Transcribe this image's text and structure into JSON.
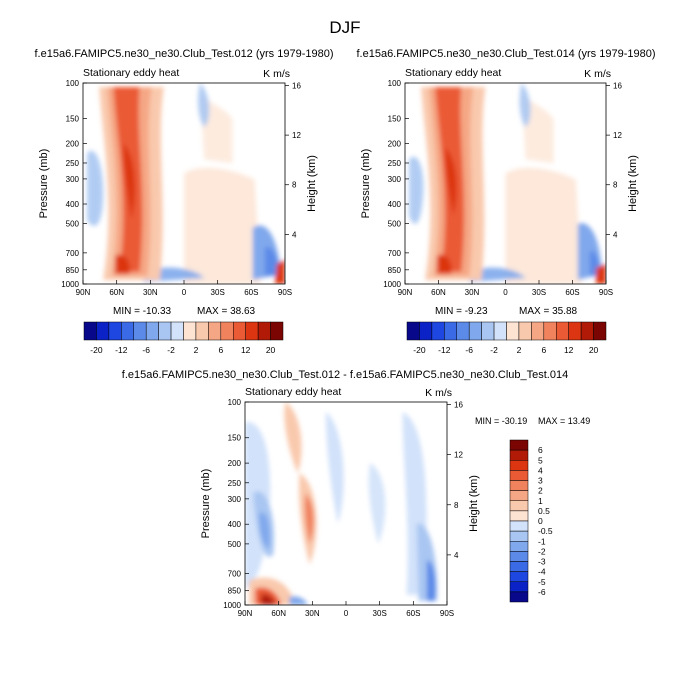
{
  "page": {
    "title": "DJF"
  },
  "chart_data": [
    {
      "type": "heatmap",
      "case_title": "f.e15a6.FAMIPC5.ne30_ne30.Club_Test.012 (yrs 1979-1980)",
      "field_label": "Stationary eddy heat",
      "units": "K m/s",
      "xlabel": "",
      "ylabel": "Pressure (mb)",
      "y2label": "Height (km)",
      "x_ticks": [
        "90N",
        "60N",
        "30N",
        "0",
        "30S",
        "60S",
        "90S"
      ],
      "y_ticks": [
        100,
        150,
        200,
        250,
        300,
        400,
        500,
        700,
        850,
        1000
      ],
      "y2_ticks": [
        16,
        12,
        8,
        4
      ],
      "ylim": [
        1000,
        100
      ],
      "min_label": "MIN = -10.33",
      "max_label": "MAX =  38.63",
      "features": [
        {
          "lat": 55,
          "p": 300,
          "value": 20,
          "desc": "poleward heat transport maximum"
        },
        {
          "lat": 50,
          "p": 850,
          "value": 20,
          "desc": "low-level maximum"
        },
        {
          "lat": -80,
          "p": 900,
          "value": -10,
          "desc": "southern polar minimum"
        }
      ]
    },
    {
      "type": "heatmap",
      "case_title": "f.e15a6.FAMIPC5.ne30_ne30.Club_Test.014 (yrs 1979-1980)",
      "field_label": "Stationary eddy heat",
      "units": "K m/s",
      "xlabel": "",
      "ylabel": "Pressure (mb)",
      "y2label": "Height (km)",
      "x_ticks": [
        "90N",
        "60N",
        "30N",
        "0",
        "30S",
        "60S",
        "90S"
      ],
      "y_ticks": [
        100,
        150,
        200,
        250,
        300,
        400,
        500,
        700,
        850,
        1000
      ],
      "y2_ticks": [
        16,
        12,
        8,
        4
      ],
      "ylim": [
        1000,
        100
      ],
      "min_label": "MIN = -9.23",
      "max_label": "MAX =  35.88",
      "features": [
        {
          "lat": 55,
          "p": 300,
          "value": 20,
          "desc": "poleward heat transport maximum"
        },
        {
          "lat": 50,
          "p": 850,
          "value": 20,
          "desc": "low-level maximum"
        },
        {
          "lat": -80,
          "p": 900,
          "value": -9,
          "desc": "southern polar minimum"
        }
      ]
    },
    {
      "type": "heatmap",
      "case_title": "f.e15a6.FAMIPC5.ne30_ne30.Club_Test.012 - f.e15a6.FAMIPC5.ne30_ne30.Club_Test.014",
      "field_label": "Stationary eddy heat",
      "units": "K m/s",
      "xlabel": "",
      "ylabel": "Pressure (mb)",
      "y2label": "Height (km)",
      "x_ticks": [
        "90N",
        "60N",
        "30N",
        "0",
        "30S",
        "60S",
        "90S"
      ],
      "y_ticks": [
        100,
        150,
        200,
        250,
        300,
        400,
        500,
        700,
        850,
        1000
      ],
      "y2_ticks": [
        16,
        12,
        8,
        4
      ],
      "ylim": [
        1000,
        100
      ],
      "min_label": "MIN = -30.19",
      "max_label": "MAX =  13.49",
      "features": [
        {
          "lat": 60,
          "p": 950,
          "value": 6,
          "desc": "near-surface positive difference"
        },
        {
          "lat": 30,
          "p": 500,
          "value": 3,
          "desc": "mid-troposphere positive difference"
        },
        {
          "lat": 70,
          "p": 450,
          "value": -2,
          "desc": "negative difference"
        },
        {
          "lat": -85,
          "p": 750,
          "value": -6,
          "desc": "southern polar negative difference"
        }
      ]
    }
  ],
  "colorbar_top": {
    "orientation": "horizontal",
    "levels": [
      -20,
      -16,
      -12,
      -8,
      -6,
      -4,
      -2,
      0,
      2,
      4,
      6,
      8,
      12,
      16,
      20
    ],
    "tick_labels": [
      "-20",
      "-12",
      "-6",
      "-2",
      "2",
      "6",
      "12",
      "20"
    ],
    "colors": [
      "#08088a",
      "#0a22c6",
      "#1e46e0",
      "#3a6ae6",
      "#5c8ae8",
      "#80a8ec",
      "#a9c6f2",
      "#d2e2fa",
      "#fde3d2",
      "#f9c9ad",
      "#f5a785",
      "#f0825e",
      "#ea5a35",
      "#dc3511",
      "#b01a07",
      "#7a0503"
    ]
  },
  "colorbar_bottom": {
    "orientation": "vertical",
    "levels": [
      6,
      5,
      4,
      3,
      2,
      1,
      0.5,
      0,
      -0.5,
      -1,
      -2,
      -3,
      -4,
      -5,
      -6
    ],
    "tick_labels": [
      "6",
      "5",
      "4",
      "3",
      "2",
      "1",
      "0.5",
      "0",
      "-0.5",
      "-1",
      "-2",
      "-3",
      "-4",
      "-5",
      "-6"
    ],
    "colors": [
      "#7a0503",
      "#b01a07",
      "#dc3511",
      "#ea5a35",
      "#f0825e",
      "#f5a785",
      "#f9c9ad",
      "#fde3d2",
      "#d2e2fa",
      "#a9c6f2",
      "#80a8ec",
      "#5c8ae8",
      "#3a6ae6",
      "#1e46e0",
      "#0a22c6",
      "#08088a"
    ]
  }
}
